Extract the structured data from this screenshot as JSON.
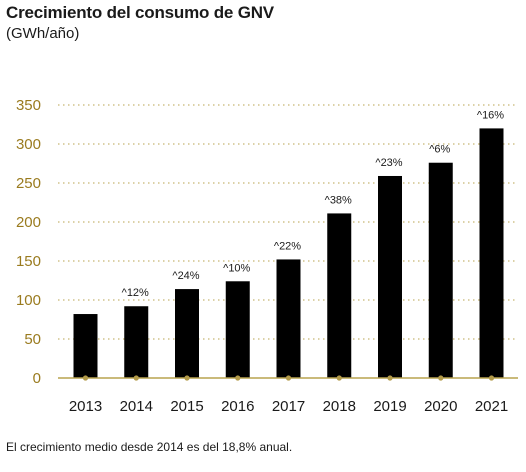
{
  "header": {
    "title": "Crecimiento del consumo de GNV",
    "subtitle": "(GWh/año)"
  },
  "footnote": "El crecimiento medio desde 2014 es del 18,8% anual.",
  "colors": {
    "bar": "#000000",
    "axis": "#b8a34f",
    "grid": "#b8a34f",
    "tick_label": "#9a7b1f",
    "marker": "#b39b4a"
  },
  "chart_data": {
    "type": "bar",
    "title": "Crecimiento del consumo de GNV",
    "subtitle": "(GWh/año)",
    "xlabel": "",
    "ylabel": "",
    "categories": [
      "2013",
      "2014",
      "2015",
      "2016",
      "2017",
      "2018",
      "2019",
      "2020",
      "2021"
    ],
    "values": [
      82,
      92,
      114,
      124,
      152,
      211,
      259,
      276,
      320
    ],
    "data_labels": [
      "",
      "^12%",
      "^24%",
      "^10%",
      "^22%",
      "^38%",
      "^23%",
      "^6%",
      "^16%"
    ],
    "ylim": [
      0,
      350
    ],
    "yticks": [
      0,
      50,
      100,
      150,
      200,
      250,
      300,
      350
    ],
    "grid": true,
    "grid_style": "dotted",
    "legend": "none"
  }
}
